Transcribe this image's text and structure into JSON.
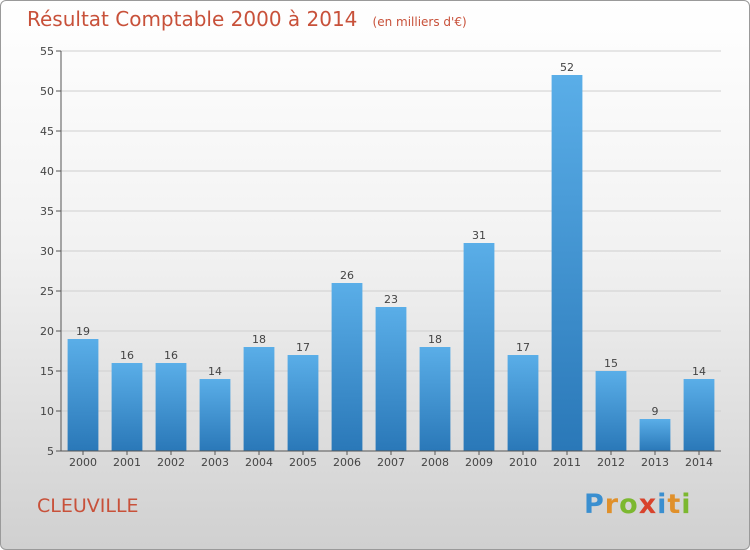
{
  "page": {
    "title": "Résultat Comptable 2000 à 2014",
    "subtitle": "(en milliers d'€)",
    "town": "CLEUVILLE"
  },
  "logo": {
    "text": "Proxiti",
    "letters": [
      {
        "ch": "P",
        "color": "#3a8fd0"
      },
      {
        "ch": "r",
        "color": "#e0902a"
      },
      {
        "ch": "o",
        "color": "#7cb830"
      },
      {
        "ch": "x",
        "color": "#d8432c"
      },
      {
        "ch": "i",
        "color": "#3a8fd0"
      },
      {
        "ch": "t",
        "color": "#e0902a"
      },
      {
        "ch": "i",
        "color": "#7cb830"
      }
    ]
  },
  "chart_data": {
    "type": "bar",
    "title": "Résultat Comptable 2000 à 2014",
    "subtitle": "(en milliers d'€)",
    "categories": [
      "2000",
      "2001",
      "2002",
      "2003",
      "2004",
      "2005",
      "2006",
      "2007",
      "2008",
      "2009",
      "2010",
      "2011",
      "2012",
      "2013",
      "2014"
    ],
    "values": [
      19,
      16,
      16,
      14,
      18,
      17,
      26,
      23,
      18,
      31,
      17,
      52,
      15,
      9,
      14
    ],
    "ylim": [
      5,
      55
    ],
    "yticks": [
      5,
      10,
      15,
      20,
      25,
      30,
      35,
      40,
      45,
      50,
      55
    ],
    "grid": true,
    "bar_color": "#3a8fd0"
  }
}
